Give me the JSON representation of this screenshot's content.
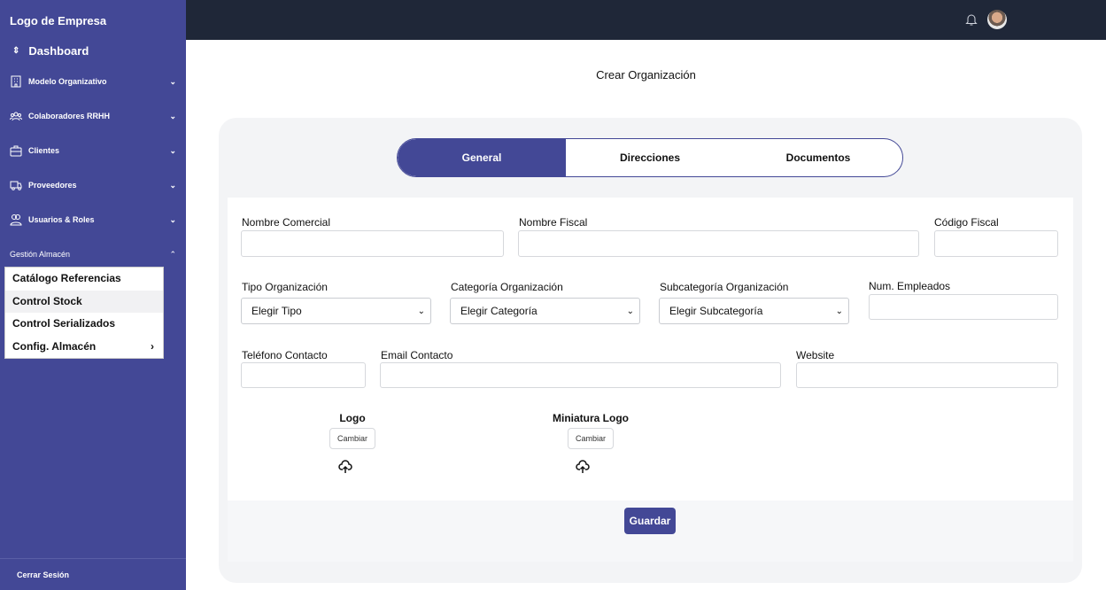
{
  "sidebar": {
    "brand": "Logo de Empresa",
    "dashboard": "Dashboard",
    "items": [
      {
        "label": "Modelo Organizativo",
        "icon": "building-icon"
      },
      {
        "label": "Colaboradores RRHH",
        "icon": "users-group-icon"
      },
      {
        "label": "Clientes",
        "icon": "briefcase-icon"
      },
      {
        "label": "Proveedores",
        "icon": "truck-icon"
      },
      {
        "label": "Usuarios & Roles",
        "icon": "users-icon"
      }
    ],
    "section": "Gestión Almacén",
    "submenu": [
      "Catálogo Referencias",
      "Control Stock",
      "Control Serializados",
      "Config. Almacén"
    ],
    "logout": "Cerrar Sesión"
  },
  "page_title": "Crear Organización",
  "tabs": [
    "General",
    "Direcciones",
    "Documentos"
  ],
  "form": {
    "nombre_comercial": "Nombre Comercial",
    "nombre_fiscal": "Nombre Fiscal",
    "codigo_fiscal": "Código Fiscal",
    "tipo": {
      "label": "Tipo Organización",
      "value": "Elegir Tipo"
    },
    "categoria": {
      "label": "Categoría Organización",
      "value": "Elegir Categoría"
    },
    "subcategoria": {
      "label": "Subcategoría Organización",
      "value": "Elegir Subcategoría"
    },
    "empleados": "Num. Empleados",
    "telefono": "Teléfono Contacto",
    "email": "Email Contacto",
    "website": "Website",
    "logo": "Logo",
    "miniatura": "Miniatura Logo",
    "cambiar": "Cambiar",
    "guardar": "Guardar"
  },
  "colors": {
    "sidebar": "#434896",
    "topbar": "#1f2738",
    "accent": "#434896"
  }
}
